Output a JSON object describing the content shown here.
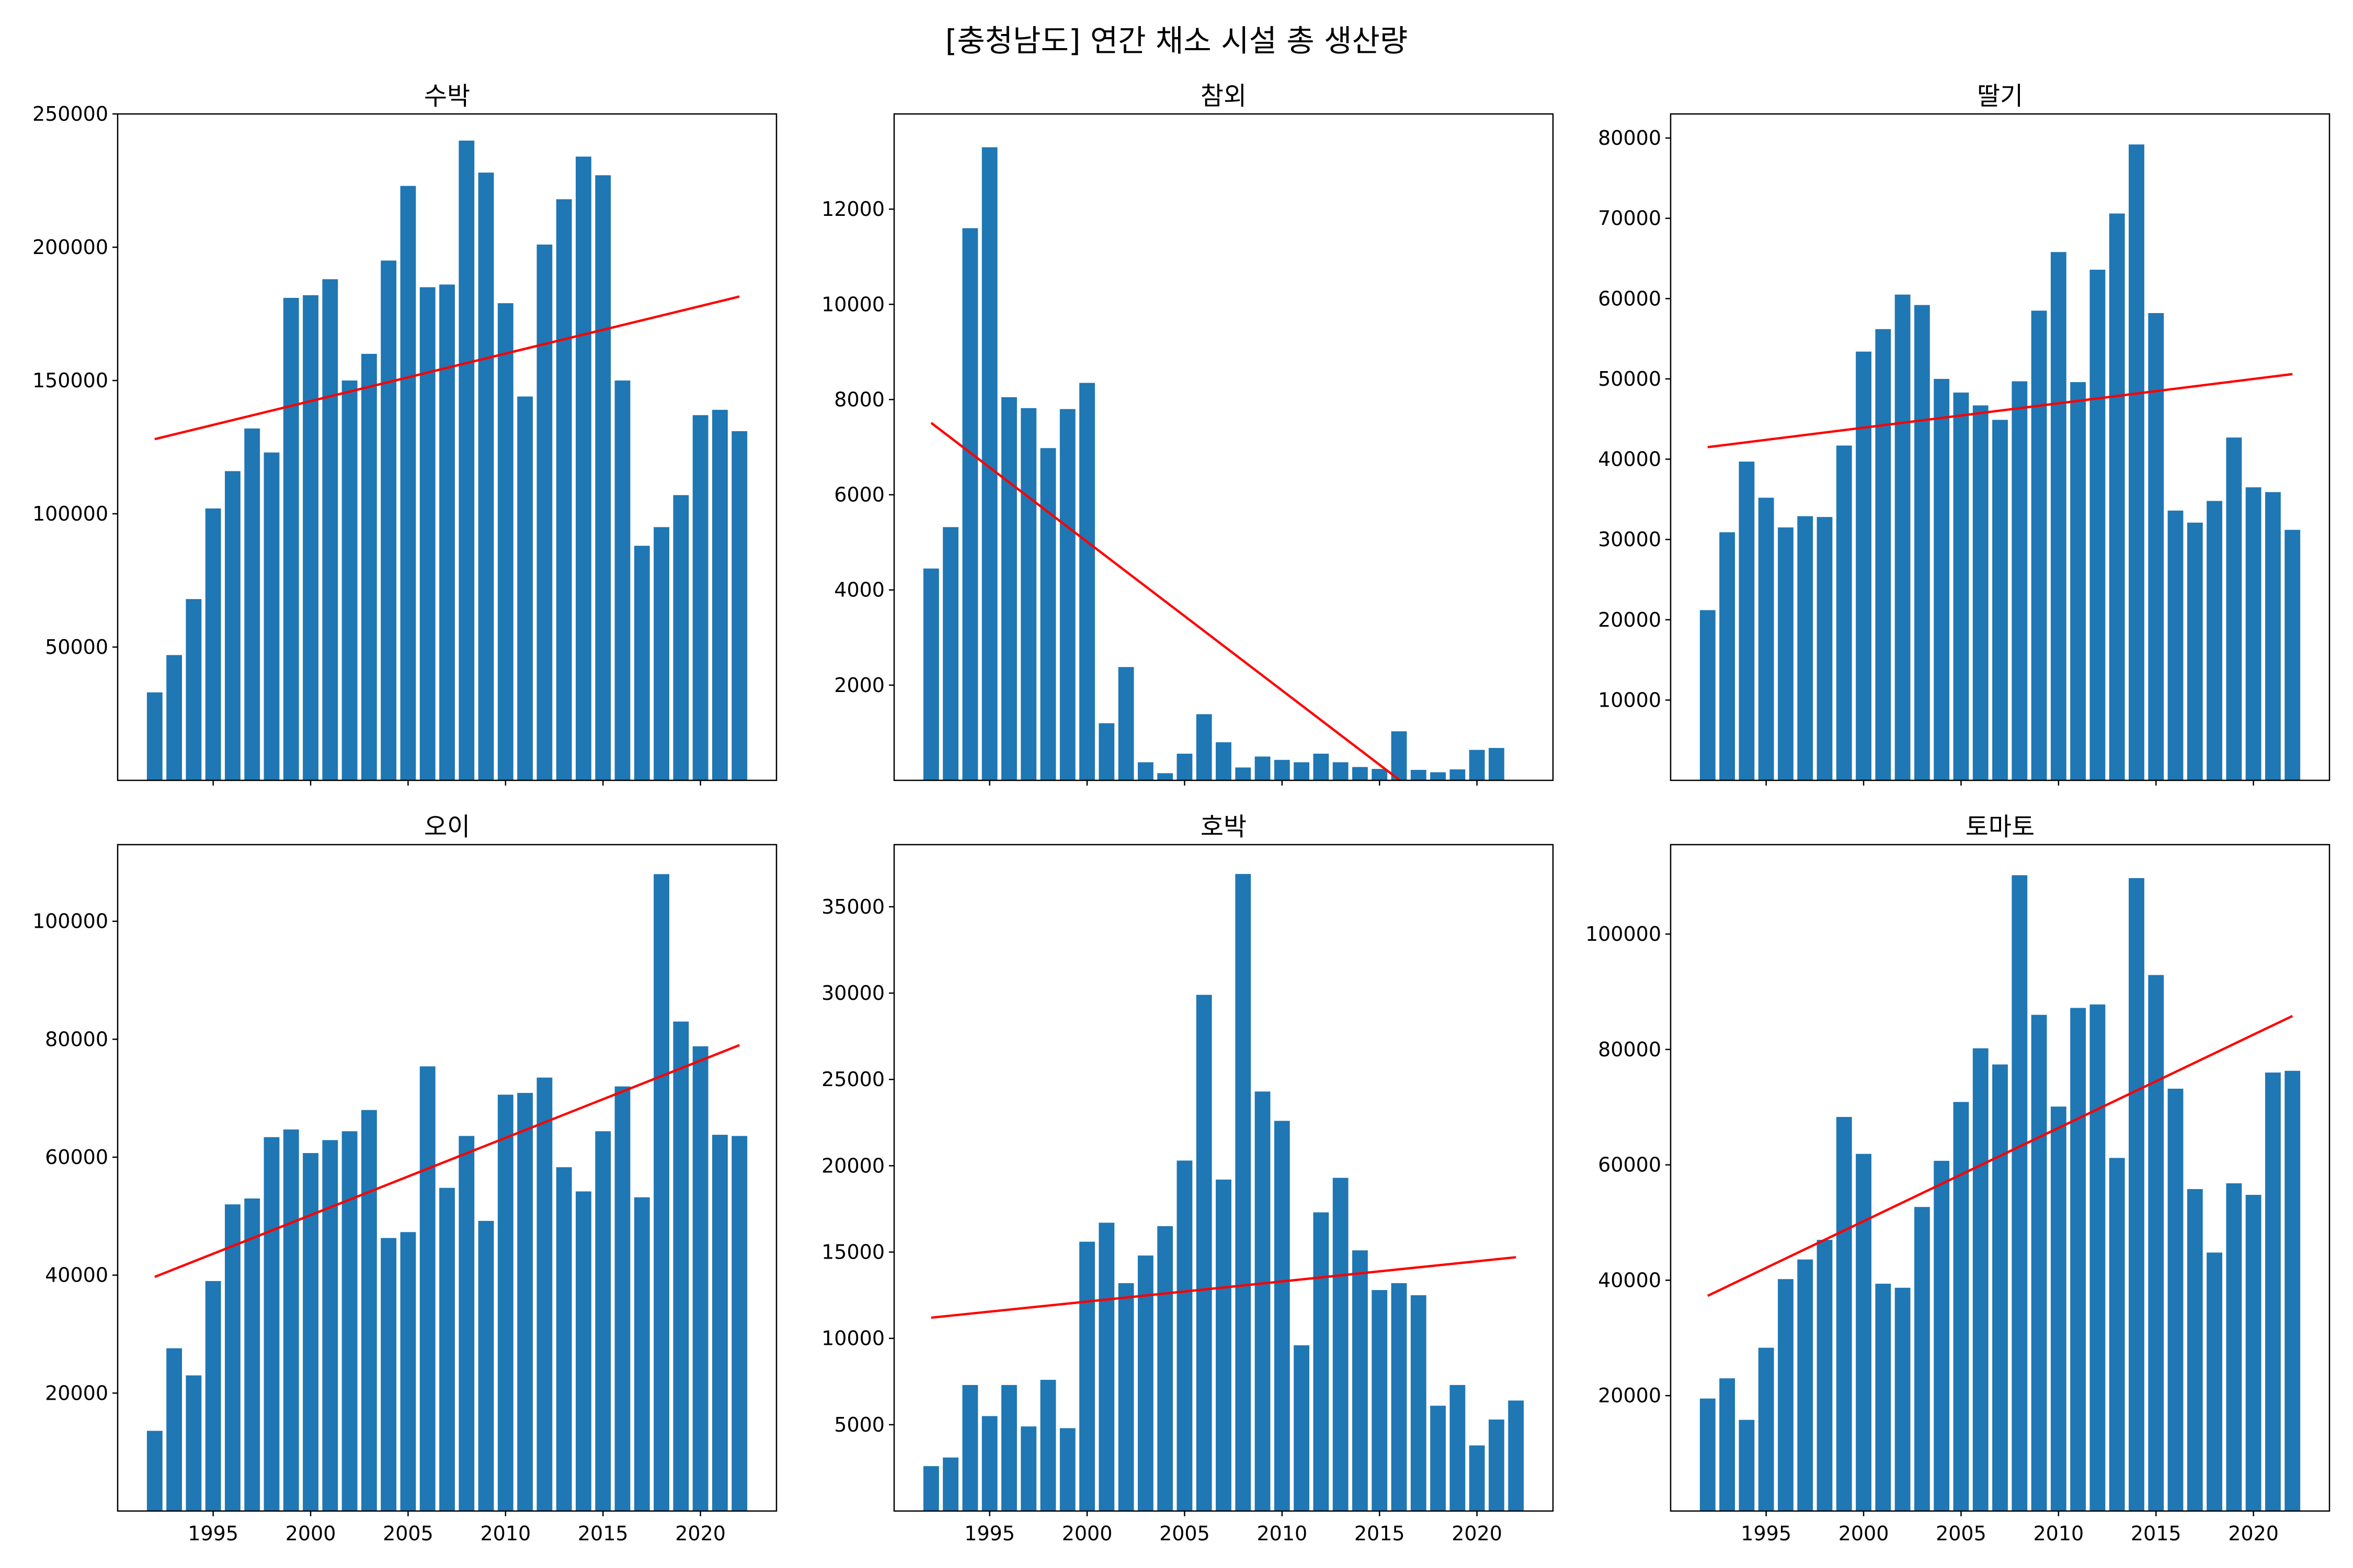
{
  "figure": {
    "title": "[충청남도] 연간 채소 시설 총 생산량"
  },
  "colors": {
    "bar": "#1f77b4",
    "trend": "#ff0000",
    "axis": "#000000"
  },
  "chart_data": [
    {
      "type": "bar",
      "title": "수박",
      "x": [
        1992,
        1993,
        1994,
        1995,
        1996,
        1997,
        1998,
        1999,
        2000,
        2001,
        2002,
        2003,
        2004,
        2005,
        2006,
        2007,
        2008,
        2009,
        2010,
        2011,
        2012,
        2013,
        2014,
        2015,
        2016,
        2017,
        2018,
        2019,
        2020,
        2021,
        2022
      ],
      "values": [
        33000,
        47000,
        68000,
        102000,
        116000,
        132000,
        123000,
        181000,
        182000,
        188000,
        150000,
        160000,
        195000,
        223000,
        185000,
        186000,
        240000,
        228000,
        179000,
        144000,
        201000,
        218000,
        234000,
        227000,
        150000,
        88000,
        95000,
        107000,
        137000,
        139000,
        131000
      ],
      "trend": {
        "start": [
          1992,
          128000
        ],
        "end": [
          2022,
          181500
        ]
      },
      "xlim": [
        1990.1,
        2023.9
      ],
      "ylim": [
        0,
        250000
      ],
      "xticks": [
        1995,
        2000,
        2005,
        2010,
        2015,
        2020
      ],
      "yticks": [
        50000,
        100000,
        150000,
        200000,
        250000
      ],
      "show_xticklabels": false
    },
    {
      "type": "bar",
      "title": "참외",
      "x": [
        1992,
        1993,
        1994,
        1995,
        1996,
        1997,
        1998,
        1999,
        2000,
        2001,
        2002,
        2003,
        2004,
        2005,
        2006,
        2007,
        2008,
        2009,
        2010,
        2011,
        2012,
        2013,
        2014,
        2015,
        2016,
        2017,
        2018,
        2019,
        2020,
        2021
      ],
      "values": [
        4450,
        5320,
        11600,
        13300,
        8050,
        7820,
        6980,
        7800,
        8350,
        1200,
        2380,
        380,
        150,
        560,
        1390,
        800,
        270,
        500,
        430,
        380,
        560,
        380,
        280,
        240,
        1030,
        220,
        170,
        230,
        640,
        680
      ],
      "trend": {
        "start": [
          1992,
          7510
        ],
        "end": [
          2016.05,
          0
        ]
      },
      "xlim": [
        1990.1,
        2023.9
      ],
      "ylim": [
        0,
        14000
      ],
      "xticks": [
        1995,
        2000,
        2005,
        2010,
        2015,
        2020
      ],
      "yticks": [
        2000,
        4000,
        6000,
        8000,
        10000,
        12000
      ],
      "show_xticklabels": false
    },
    {
      "type": "bar",
      "title": "딸기",
      "x": [
        1992,
        1993,
        1994,
        1995,
        1996,
        1997,
        1998,
        1999,
        2000,
        2001,
        2002,
        2003,
        2004,
        2005,
        2006,
        2007,
        2008,
        2009,
        2010,
        2011,
        2012,
        2013,
        2014,
        2015,
        2016,
        2017,
        2018,
        2019,
        2020,
        2021,
        2022
      ],
      "values": [
        21200,
        30900,
        39700,
        35200,
        31500,
        32900,
        32800,
        41700,
        53400,
        56200,
        60500,
        59200,
        50000,
        48300,
        46700,
        44900,
        49700,
        58500,
        65800,
        49600,
        63600,
        70600,
        79200,
        58200,
        33600,
        32100,
        34800,
        42700,
        36500,
        35900,
        31200
      ],
      "trend": {
        "start": [
          1992,
          41500
        ],
        "end": [
          2022,
          50600
        ]
      },
      "xlim": [
        1990.1,
        2023.9
      ],
      "ylim": [
        0,
        83000
      ],
      "xticks": [
        1995,
        2000,
        2005,
        2010,
        2015,
        2020
      ],
      "yticks": [
        10000,
        20000,
        30000,
        40000,
        50000,
        60000,
        70000,
        80000
      ],
      "show_xticklabels": false
    },
    {
      "type": "bar",
      "title": "오이",
      "x": [
        1992,
        1993,
        1994,
        1995,
        1996,
        1997,
        1998,
        1999,
        2000,
        2001,
        2002,
        2003,
        2004,
        2005,
        2006,
        2007,
        2008,
        2009,
        2010,
        2011,
        2012,
        2013,
        2014,
        2015,
        2016,
        2017,
        2018,
        2019,
        2020,
        2021,
        2022
      ],
      "values": [
        13600,
        27600,
        23000,
        39000,
        52000,
        53000,
        63400,
        64700,
        60700,
        62900,
        64400,
        68000,
        46300,
        47300,
        75400,
        54800,
        63600,
        49200,
        70600,
        70900,
        73500,
        58300,
        54200,
        64400,
        72000,
        53200,
        108000,
        83000,
        78800,
        63800,
        63600
      ],
      "trend": {
        "start": [
          1992,
          39700
        ],
        "end": [
          2022,
          79000
        ]
      },
      "xlim": [
        1990.1,
        2023.9
      ],
      "ylim": [
        0,
        113000
      ],
      "xticks": [
        1995,
        2000,
        2005,
        2010,
        2015,
        2020
      ],
      "yticks": [
        20000,
        40000,
        60000,
        80000,
        100000
      ],
      "show_xticklabels": true
    },
    {
      "type": "bar",
      "title": "호박",
      "x": [
        1992,
        1993,
        1994,
        1995,
        1996,
        1997,
        1998,
        1999,
        2000,
        2001,
        2002,
        2003,
        2004,
        2005,
        2006,
        2007,
        2008,
        2009,
        2010,
        2011,
        2012,
        2013,
        2014,
        2015,
        2016,
        2017,
        2018,
        2019,
        2020,
        2021,
        2022
      ],
      "values": [
        2600,
        3100,
        7300,
        5500,
        7300,
        4900,
        7600,
        4800,
        15600,
        16700,
        13200,
        14800,
        16500,
        20300,
        29900,
        19200,
        36900,
        24300,
        22600,
        9600,
        17300,
        19300,
        15100,
        12800,
        13200,
        12500,
        6100,
        7300,
        3800,
        5300,
        6400
      ],
      "trend": {
        "start": [
          1992,
          11200
        ],
        "end": [
          2022,
          14700
        ]
      },
      "xlim": [
        1990.1,
        2023.9
      ],
      "ylim": [
        0,
        38600
      ],
      "xticks": [
        1995,
        2000,
        2005,
        2010,
        2015,
        2020
      ],
      "yticks": [
        5000,
        10000,
        15000,
        20000,
        25000,
        30000,
        35000
      ],
      "show_xticklabels": true
    },
    {
      "type": "bar",
      "title": "토마토",
      "x": [
        1992,
        1993,
        1994,
        1995,
        1996,
        1997,
        1998,
        1999,
        2000,
        2001,
        2002,
        2003,
        2004,
        2005,
        2006,
        2007,
        2008,
        2009,
        2010,
        2011,
        2012,
        2013,
        2014,
        2015,
        2016,
        2017,
        2018,
        2019,
        2020,
        2021,
        2022
      ],
      "values": [
        19500,
        23000,
        15800,
        28300,
        40200,
        43600,
        47000,
        68300,
        61900,
        39400,
        38700,
        52700,
        60700,
        70900,
        80200,
        77400,
        110200,
        86000,
        70100,
        87200,
        87800,
        61200,
        109700,
        92900,
        73200,
        55800,
        44800,
        56800,
        54800,
        76000,
        76300
      ],
      "trend": {
        "start": [
          1992,
          37300
        ],
        "end": [
          2022,
          85800
        ]
      },
      "xlim": [
        1990.1,
        2023.9
      ],
      "ylim": [
        0,
        115500
      ],
      "xticks": [
        1995,
        2000,
        2005,
        2010,
        2015,
        2020
      ],
      "yticks": [
        20000,
        40000,
        60000,
        80000,
        100000
      ],
      "show_xticklabels": true
    }
  ]
}
